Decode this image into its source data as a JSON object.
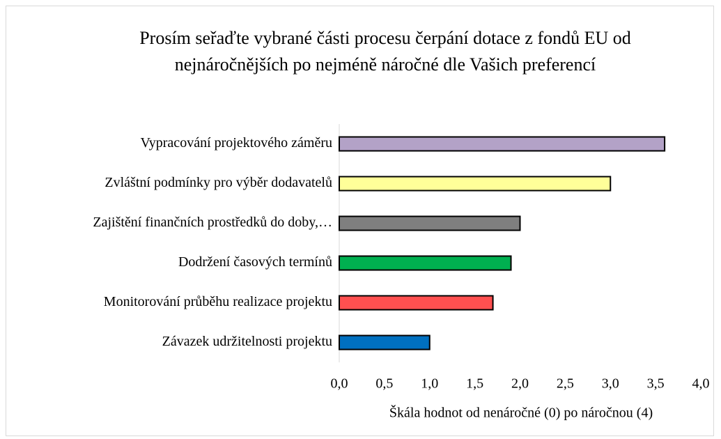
{
  "chart_data": {
    "type": "barh",
    "title": "Prosím seřaďte vybrané části procesu čerpání dotace z fondů EU od nejnáročnějších po nejméně náročné dle Vašich preferencí",
    "categories": [
      "Vypracování projektového záměru",
      "Zvláštní podmínky pro výběr dodavatelů",
      "Zajištění finančních prostředků do doby,…",
      "Dodržení časových termínů",
      "Monitorování průběhu realizace projektu",
      "Závazek udržitelnosti projektu"
    ],
    "values": [
      3.6,
      3.0,
      2.0,
      1.9,
      1.7,
      1.0
    ],
    "colors": [
      "#b3a2c7",
      "#ffff99",
      "#7f7f7f",
      "#00b050",
      "#ff5050",
      "#0070c0"
    ],
    "xlabel": "Škála hodnot od nenáročné (0) po náročnou (4)",
    "xlim": [
      0,
      4
    ],
    "xticks": [
      {
        "value": 0,
        "label": "0,0"
      },
      {
        "value": 0.5,
        "label": "0,5"
      },
      {
        "value": 1,
        "label": "1,0"
      },
      {
        "value": 1.5,
        "label": "1,5"
      },
      {
        "value": 2,
        "label": "2,0"
      },
      {
        "value": 2.5,
        "label": "2,5"
      },
      {
        "value": 3,
        "label": "3,0"
      },
      {
        "value": 3.5,
        "label": "3,5"
      },
      {
        "value": 4,
        "label": "4,0"
      }
    ],
    "grid": false
  }
}
